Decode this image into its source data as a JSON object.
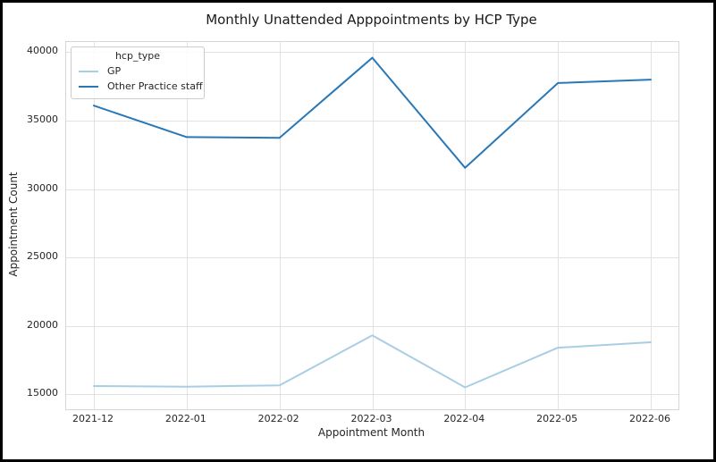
{
  "chart_data": {
    "type": "line",
    "title": "Monthly Unattended Apppointments by HCP Type",
    "xlabel": "Appointment Month",
    "ylabel": "Appointment Count",
    "x": [
      "2021-12",
      "2022-01",
      "2022-02",
      "2022-03",
      "2022-04",
      "2022-05",
      "2022-06"
    ],
    "series": [
      {
        "name": "GP",
        "color": "#a8cee4",
        "values": [
          15600,
          15550,
          15650,
          19300,
          15500,
          18400,
          18800
        ]
      },
      {
        "name": "Other Practice staff",
        "color": "#2878b8",
        "values": [
          36100,
          33800,
          33750,
          39600,
          31550,
          37750,
          38000
        ]
      }
    ],
    "legend_title": "hcp_type",
    "legend_position": "upper left",
    "y_ticks": [
      15000,
      20000,
      25000,
      30000,
      35000,
      40000
    ],
    "ylim": [
      13900,
      40750
    ],
    "grid": true
  },
  "frame": {
    "background_color": "#ffffff",
    "border_color": "#000000"
  },
  "style": {
    "grid_color": "#e2e2e2",
    "plot_border_color": "#d6d6d6",
    "text_color": "#262626"
  }
}
